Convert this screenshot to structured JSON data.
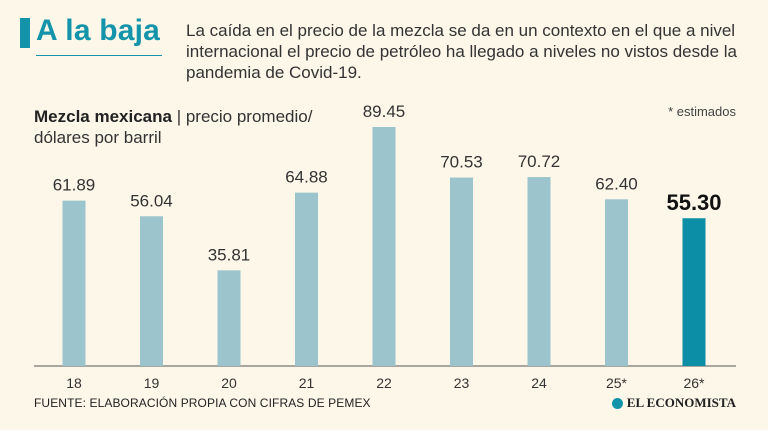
{
  "header": {
    "headline": "A la baja",
    "lede": "La caída en el precio de la mezcla se da en un contexto en el que a nivel internacional el precio de petróleo ha llegado a niveles no vistos desde la pandemia de Covid-19."
  },
  "chart_title": {
    "bold": "Mezcla mexicana",
    "rest": " | precio promedio/ dólares por barril"
  },
  "note": "* estimados",
  "footer": {
    "source": "FUENTE: ELABORACIÓN PROPIA CON CIFRAS DE PEMEX",
    "brand": "EL ECONOMISTA"
  },
  "colors": {
    "bar": "#9cc4cc",
    "highlight": "#0b8ea6",
    "accent": "#1494aa"
  },
  "chart_data": {
    "type": "bar",
    "categories": [
      "18",
      "19",
      "20",
      "21",
      "22",
      "23",
      "24",
      "25*",
      "26*"
    ],
    "values": [
      61.89,
      56.04,
      35.81,
      64.88,
      89.45,
      70.53,
      70.72,
      62.4,
      55.3
    ],
    "value_labels": [
      "61.89",
      "56.04",
      "35.81",
      "64.88",
      "89.45",
      "70.53",
      "70.72",
      "62.40",
      "55.30"
    ],
    "highlight_index": 8,
    "title": "Mezcla mexicana | precio promedio/ dólares por barril",
    "xlabel": "",
    "ylabel": "",
    "ylim": [
      0,
      100
    ],
    "grid": false,
    "legend": "none"
  }
}
